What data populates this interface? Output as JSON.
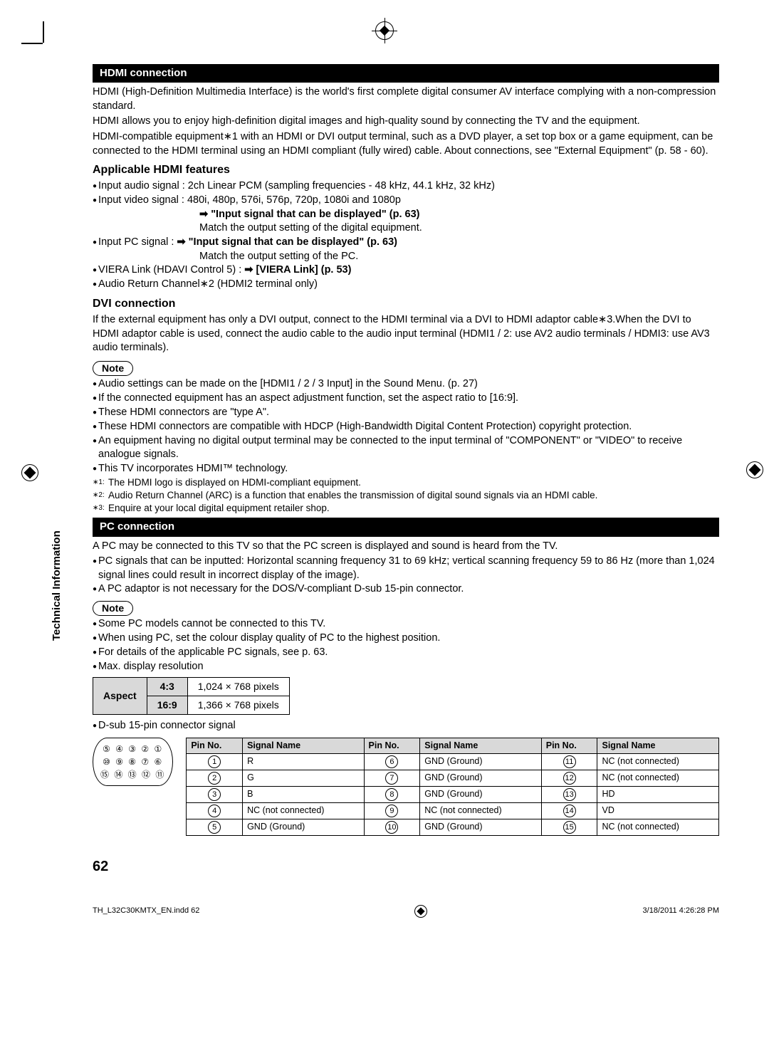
{
  "crop_marks": true,
  "sections": {
    "hdmi_header": "HDMI connection",
    "hdmi_intro": [
      "HDMI (High-Definition Multimedia Interface) is the world's first complete digital consumer AV interface complying with a non-compression standard.",
      "HDMI allows you to enjoy high-definition digital images and high-quality sound by connecting the TV and the equipment.",
      "HDMI-compatible equipment∗1 with an HDMI or DVI output terminal, such as a DVD player, a set top box or a game equipment, can be connected to the HDMI terminal using an HDMI compliant (fully wired) cable. About connections, see \"External Equipment\" (p. 58 - 60)."
    ],
    "applicable_head": "Applicable HDMI features",
    "applicable": {
      "audio": "Input audio signal : 2ch Linear PCM (sampling frequencies - 48 kHz, 44.1 kHz, 32 kHz)",
      "video": "Input video signal : 480i, 480p, 576i, 576p, 720p, 1080i and 1080p",
      "video_ref": "\"Input signal that can be displayed\" (p. 63)",
      "video_match": "Match the output setting of the digital equipment.",
      "pc": "Input PC signal :",
      "pc_ref": "\"Input signal that can be displayed\" (p. 63)",
      "pc_match": "Match the output setting of the PC.",
      "viera": "VIERA Link (HDAVI Control 5) :",
      "viera_ref": "[VIERA Link] (p. 53)",
      "arc": "Audio Return Channel∗2 (HDMI2 terminal only)"
    },
    "dvi_head": "DVI connection",
    "dvi_body": "If the external equipment has only a DVI output, connect to the HDMI terminal via a DVI to HDMI adaptor cable∗3.When the DVI to HDMI adaptor cable is used, connect the audio cable to the audio input terminal (HDMI1 / 2: use AV2 audio terminals / HDMI3: use AV3 audio terminals).",
    "note_label": "Note",
    "hdmi_notes": [
      "Audio settings can be made on the [HDMI1 / 2 / 3 Input] in the Sound Menu. (p. 27)",
      "If the connected equipment has an aspect adjustment function, set the aspect ratio to [16:9].",
      "These HDMI connectors are \"type A\".",
      "These HDMI connectors are compatible with HDCP (High-Bandwidth Digital Content Protection) copyright protection.",
      "An equipment having no digital output terminal may be connected to the input terminal of \"COMPONENT\" or \"VIDEO\" to receive analogue signals.",
      "This TV incorporates HDMI™ technology."
    ],
    "hdmi_footnotes": [
      {
        "n": "∗1:",
        "t": "The HDMI logo is displayed on HDMI-compliant equipment."
      },
      {
        "n": "∗2:",
        "t": "Audio Return Channel (ARC) is a function that enables the transmission of digital sound signals via an HDMI cable."
      },
      {
        "n": "∗3:",
        "t": "Enquire at your local digital equipment retailer shop."
      }
    ],
    "pc_header": "PC connection",
    "pc_intro": [
      "A PC may be connected to this TV so that the PC screen is displayed and sound is heard from the TV."
    ],
    "pc_bullets": [
      "PC signals that can be inputted: Horizontal scanning frequency 31 to 69 kHz; vertical scanning frequency 59 to 86 Hz (more than 1,024 signal lines could result in incorrect display of the image).",
      "A PC adaptor is not necessary for the DOS/V-compliant D-sub 15-pin connector."
    ],
    "pc_notes": [
      "Some PC models cannot be connected to this TV.",
      "When using PC, set the colour display quality of PC to the highest position.",
      "For details of the applicable PC signals, see p. 63.",
      "Max. display resolution"
    ],
    "aspect_table": {
      "row_label": "Aspect",
      "rows": [
        {
          "r": "4:3",
          "v": "1,024 × 768 pixels"
        },
        {
          "r": "16:9",
          "v": "1,366 × 768 pixels"
        }
      ]
    },
    "dsub_label": "D-sub 15-pin connector signal",
    "connector_rows": [
      "⑤ ④ ③ ② ①",
      "⑩ ⑨ ⑧ ⑦ ⑥",
      "⑮ ⑭ ⑬ ⑫ ⑪"
    ],
    "pin_headers": [
      "Pin No.",
      "Signal Name",
      "Pin No.",
      "Signal Name",
      "Pin No.",
      "Signal Name"
    ],
    "pin_rows": [
      [
        "1",
        "R",
        "6",
        "GND (Ground)",
        "11",
        "NC (not connected)"
      ],
      [
        "2",
        "G",
        "7",
        "GND (Ground)",
        "12",
        "NC (not connected)"
      ],
      [
        "3",
        "B",
        "8",
        "GND (Ground)",
        "13",
        "HD"
      ],
      [
        "4",
        "NC (not connected)",
        "9",
        "NC (not connected)",
        "14",
        "VD"
      ],
      [
        "5",
        "GND (Ground)",
        "10",
        "GND (Ground)",
        "15",
        "NC (not connected)"
      ]
    ]
  },
  "side_label": "Technical Information",
  "page_number": "62",
  "footer_left": "TH_L32C30KMTX_EN.indd   62",
  "footer_right": "3/18/2011   4:26:28 PM"
}
